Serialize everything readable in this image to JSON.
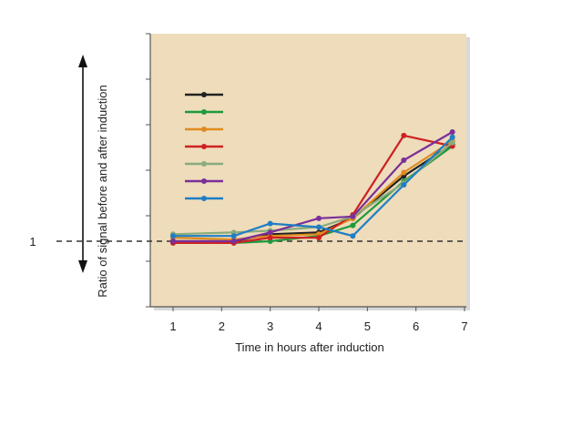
{
  "chart_data": {
    "type": "line",
    "title": "",
    "xlabel": "Time in hours after induction",
    "ylabel": "Ratio of signal before and after induction",
    "x_ticks": [
      "1",
      "2",
      "3",
      "4",
      "5",
      "6",
      "7"
    ],
    "reference_line": {
      "value": 1,
      "label": "1",
      "style": "dashed"
    },
    "xlim": [
      0.5,
      7.1
    ],
    "ylim": [
      0.55,
      2.1
    ],
    "legend": {
      "position": "top-left",
      "labels_visible": false
    },
    "grid": false,
    "plot_background": "#eedcbb",
    "series": [
      {
        "color": "#222222",
        "x": [
          1,
          2.25,
          3,
          4,
          4.7,
          5.75,
          6.75
        ],
        "y": [
          1.0,
          1.0,
          1.04,
          1.05,
          1.13,
          1.37,
          1.55
        ]
      },
      {
        "color": "#1e9a3c",
        "x": [
          1,
          2.25,
          3,
          4,
          4.7,
          5.75,
          6.75
        ],
        "y": [
          0.99,
          0.99,
          1.0,
          1.03,
          1.09,
          1.34,
          1.54
        ]
      },
      {
        "color": "#e08a1e",
        "x": [
          1,
          2.25,
          3,
          4,
          4.7,
          5.75,
          6.75
        ],
        "y": [
          1.02,
          1.01,
          1.03,
          1.04,
          1.13,
          1.39,
          1.57
        ]
      },
      {
        "color": "#cc2222",
        "x": [
          1,
          2.25,
          3,
          4,
          4.7,
          5.75,
          6.75
        ],
        "y": [
          0.99,
          0.99,
          1.02,
          1.02,
          1.15,
          1.6,
          1.54
        ]
      },
      {
        "color": "#8aab7c",
        "x": [
          1,
          2.25,
          3,
          4,
          4.7,
          5.75,
          6.75
        ],
        "y": [
          1.04,
          1.05,
          1.06,
          1.08,
          1.14,
          1.33,
          1.56
        ]
      },
      {
        "color": "#7b2f9a",
        "x": [
          1,
          2.25,
          3,
          4,
          4.7,
          5.75,
          6.75
        ],
        "y": [
          1.0,
          1.0,
          1.05,
          1.13,
          1.14,
          1.46,
          1.62
        ]
      },
      {
        "color": "#1f7ec4",
        "x": [
          1,
          2.25,
          3,
          4,
          4.7,
          5.75,
          6.75
        ],
        "y": [
          1.03,
          1.03,
          1.1,
          1.08,
          1.03,
          1.32,
          1.59
        ]
      }
    ]
  }
}
